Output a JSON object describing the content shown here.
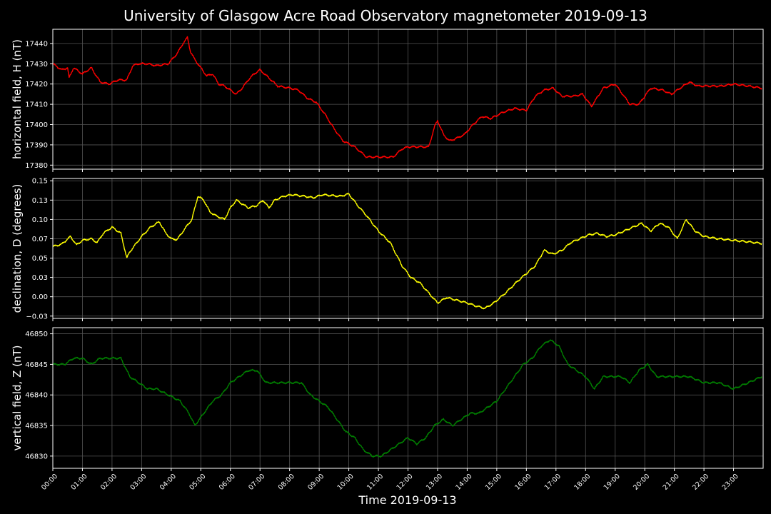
{
  "title": "University of Glasgow Acre Road Observatory magnetometer 2019-09-13",
  "colors": {
    "background": "#000000",
    "grid": "#555555",
    "axes": "#ffffff"
  },
  "chart_data": [
    {
      "type": "line",
      "ylabel": "horizontal field, H (nT)",
      "color": "#ff0000",
      "ylim": [
        17378,
        17447
      ],
      "yticks": [
        17380,
        17390,
        17400,
        17410,
        17420,
        17430,
        17440
      ],
      "grid": true,
      "series": [
        {
          "x": [
            0,
            0.3,
            0.5,
            0.55,
            0.7,
            1.0,
            1.3,
            1.6,
            1.9,
            2.2,
            2.5,
            2.7,
            2.9,
            3.2,
            3.5,
            3.9,
            4.2,
            4.4,
            4.55,
            4.65,
            4.8,
            5.0,
            5.2,
            5.4,
            5.6,
            5.8,
            6.2,
            6.4,
            6.6,
            6.8,
            7.0,
            7.3,
            7.6,
            8.0,
            8.3,
            8.6,
            8.9,
            9.2,
            9.5,
            9.8,
            10.2,
            10.6,
            10.9,
            11.2,
            11.5,
            11.8,
            12.0,
            12.3,
            12.7,
            12.9,
            13.0,
            13.2,
            13.4,
            13.6,
            13.9,
            14.2,
            14.5,
            14.8,
            15.2,
            15.6,
            16.0,
            16.3,
            16.6,
            16.9,
            17.2,
            17.6,
            17.9,
            18.2,
            18.6,
            19.0,
            19.5,
            19.8,
            20.2,
            20.6,
            20.9,
            21.2,
            21.5,
            21.8,
            22.2,
            22.6,
            23.0,
            23.5,
            23.95
          ],
          "y": [
            17430,
            17427,
            17428,
            17423,
            17428,
            17425,
            17428,
            17421,
            17420,
            17422,
            17422,
            17429,
            17430,
            17430,
            17429,
            17430,
            17435,
            17440,
            17443,
            17436,
            17432,
            17428,
            17424,
            17425,
            17420,
            17419,
            17415,
            17418,
            17422,
            17425,
            17427,
            17423,
            17419,
            17418,
            17417,
            17413,
            17411,
            17405,
            17398,
            17392,
            17389,
            17384,
            17384,
            17384,
            17384,
            17388,
            17389,
            17389,
            17389,
            17399,
            17402,
            17395,
            17392,
            17393,
            17395,
            17400,
            17404,
            17403,
            17406,
            17408,
            17407,
            17414,
            17417,
            17418,
            17414,
            17414,
            17415,
            17409,
            17418,
            17420,
            17410,
            17410,
            17418,
            17417,
            17415,
            17418,
            17421,
            17419,
            17419,
            17419,
            17420,
            17419,
            17418
          ]
        }
      ]
    },
    {
      "type": "line",
      "ylabel": "declination, D (degrees)",
      "color": "#ffff00",
      "ylim": [
        -0.028,
        0.153
      ],
      "yticks": [
        -0.025,
        0.0,
        0.025,
        0.05,
        0.075,
        0.1,
        0.125,
        0.15
      ],
      "grid": true,
      "series": [
        {
          "x": [
            0,
            0.3,
            0.6,
            0.8,
            1.0,
            1.3,
            1.5,
            1.7,
            2.0,
            2.3,
            2.5,
            2.6,
            2.8,
            3.0,
            3.3,
            3.6,
            3.8,
            4.0,
            4.2,
            4.5,
            4.7,
            4.9,
            5.1,
            5.3,
            5.5,
            5.8,
            6.0,
            6.2,
            6.4,
            6.6,
            6.9,
            7.1,
            7.3,
            7.5,
            7.8,
            8.1,
            8.5,
            8.8,
            9.1,
            9.4,
            9.7,
            10.0,
            10.3,
            10.6,
            11.0,
            11.4,
            11.8,
            12.1,
            12.4,
            12.7,
            13.0,
            13.3,
            13.6,
            14.0,
            14.3,
            14.6,
            14.9,
            15.3,
            15.7,
            16.0,
            16.3,
            16.6,
            16.9,
            17.2,
            17.5,
            17.8,
            18.1,
            18.4,
            18.7,
            19.0,
            19.3,
            19.6,
            19.9,
            20.2,
            20.5,
            20.8,
            21.1,
            21.4,
            21.7,
            22.0,
            22.5,
            23.0,
            23.5,
            23.95
          ],
          "y": [
            0.065,
            0.068,
            0.078,
            0.067,
            0.073,
            0.075,
            0.07,
            0.082,
            0.09,
            0.082,
            0.05,
            0.058,
            0.068,
            0.078,
            0.09,
            0.097,
            0.083,
            0.075,
            0.074,
            0.09,
            0.1,
            0.13,
            0.125,
            0.11,
            0.105,
            0.1,
            0.115,
            0.125,
            0.12,
            0.115,
            0.118,
            0.125,
            0.115,
            0.125,
            0.13,
            0.132,
            0.13,
            0.128,
            0.132,
            0.131,
            0.13,
            0.133,
            0.118,
            0.105,
            0.085,
            0.07,
            0.04,
            0.025,
            0.018,
            0.005,
            -0.008,
            -0.001,
            -0.004,
            -0.008,
            -0.012,
            -0.015,
            -0.008,
            0.005,
            0.02,
            0.03,
            0.04,
            0.06,
            0.055,
            0.06,
            0.07,
            0.075,
            0.08,
            0.082,
            0.078,
            0.08,
            0.085,
            0.09,
            0.095,
            0.085,
            0.095,
            0.09,
            0.075,
            0.1,
            0.085,
            0.078,
            0.075,
            0.073,
            0.071,
            0.069
          ]
        }
      ]
    },
    {
      "type": "line",
      "ylabel": "vertical field, Z (nT)",
      "color": "#008000",
      "ylim": [
        46828,
        46851
      ],
      "yticks": [
        46830,
        46835,
        46840,
        46845,
        46850
      ],
      "grid": true,
      "series": [
        {
          "x": [
            0,
            0.4,
            0.7,
            1.0,
            1.3,
            1.6,
            2.0,
            2.3,
            2.6,
            2.9,
            3.2,
            3.5,
            3.9,
            4.3,
            4.6,
            4.8,
            5.1,
            5.4,
            5.7,
            6.0,
            6.3,
            6.6,
            6.9,
            7.2,
            7.5,
            7.8,
            8.1,
            8.4,
            8.7,
            9.0,
            9.3,
            9.6,
            9.9,
            10.2,
            10.5,
            10.8,
            11.1,
            11.4,
            11.7,
            12.0,
            12.3,
            12.6,
            12.9,
            13.2,
            13.5,
            13.8,
            14.1,
            14.4,
            14.7,
            15.0,
            15.3,
            15.6,
            15.9,
            16.2,
            16.5,
            16.8,
            17.1,
            17.4,
            17.7,
            18.0,
            18.3,
            18.6,
            18.9,
            19.2,
            19.5,
            19.8,
            20.1,
            20.4,
            20.7,
            21.0,
            21.5,
            22.0,
            22.5,
            23.0,
            23.5,
            23.95
          ],
          "y": [
            46845,
            46845,
            46846,
            46846,
            46845,
            46846,
            46846,
            46846,
            46843,
            46842,
            46841,
            46841,
            46840,
            46839,
            46837,
            46835,
            46837,
            46839,
            46840,
            46842,
            46843,
            46844,
            46844,
            46842,
            46842,
            46842,
            46842,
            46842,
            46840,
            46839,
            46838,
            46836,
            46834,
            46833,
            46831,
            46830,
            46830,
            46831,
            46832,
            46833,
            46832,
            46833,
            46835,
            46836,
            46835,
            46836,
            46837,
            46837,
            46838,
            46839,
            46841,
            46843,
            46845,
            46846,
            46848,
            46849,
            46848,
            46845,
            46844,
            46843,
            46841,
            46843,
            46843,
            46843,
            46842,
            46844,
            46845,
            46843,
            46843,
            46843,
            46843,
            46842,
            46842,
            46841,
            46842,
            46843
          ]
        }
      ]
    }
  ],
  "xaxis": {
    "label": "Time 2019-09-13",
    "xlim": [
      0,
      24
    ],
    "ticks": [
      "00:00",
      "01:00",
      "02:00",
      "03:00",
      "04:00",
      "05:00",
      "06:00",
      "07:00",
      "08:00",
      "09:00",
      "10:00",
      "11:00",
      "12:00",
      "13:00",
      "14:00",
      "15:00",
      "16:00",
      "17:00",
      "18:00",
      "19:00",
      "20:00",
      "21:00",
      "22:00",
      "23:00"
    ]
  }
}
